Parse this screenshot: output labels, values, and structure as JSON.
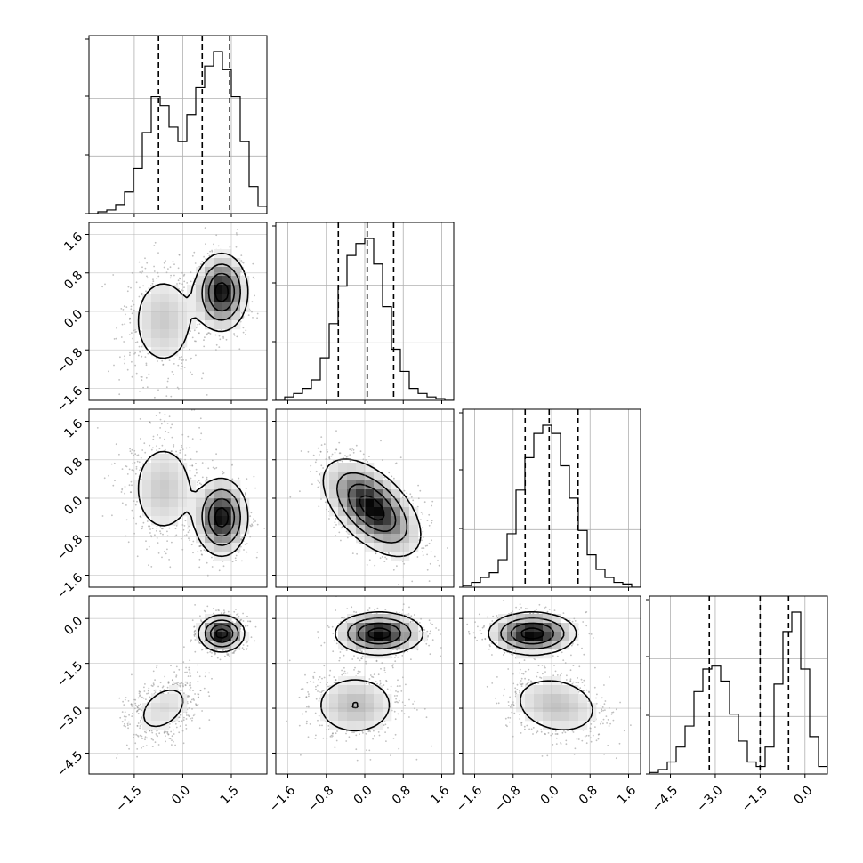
{
  "chart_data": {
    "type": "corner",
    "parameters": 4,
    "grid": true,
    "colors": {
      "density_dark": "#000000",
      "scatter": "#8c8c8c",
      "grid": "#b0b0b0"
    },
    "ticks": [
      {
        "values": [
          -1.5,
          0.0,
          1.5
        ],
        "labels": [
          "−1.5",
          "0.0",
          "1.5"
        ]
      },
      {
        "values": [
          -1.6,
          -0.8,
          0.0,
          0.8,
          1.6
        ],
        "labels": [
          "−1.6",
          "−0.8",
          "0.0",
          "0.8",
          "1.6"
        ]
      },
      {
        "values": [
          -1.6,
          -0.8,
          0.0,
          0.8,
          1.6
        ],
        "labels": [
          "−1.6",
          "−0.8",
          "0.0",
          "0.8",
          "1.6"
        ]
      },
      {
        "values": [
          -4.5,
          -3.0,
          -1.5,
          0.0
        ],
        "labels": [
          "−4.5",
          "−3.0",
          "−1.5",
          "0.0"
        ]
      }
    ],
    "ranges": [
      [
        -2.9,
        2.6
      ],
      [
        -1.85,
        1.85
      ],
      [
        -1.85,
        1.85
      ],
      [
        -5.2,
        0.75
      ]
    ],
    "histograms": [
      {
        "param": 0,
        "edges_range": [
          -2.9,
          2.6
        ],
        "counts": [
          0,
          1,
          2,
          5,
          12,
          25,
          45,
          65,
          60,
          48,
          40,
          55,
          70,
          82,
          90,
          80,
          65,
          40,
          15,
          4
        ],
        "quantiles": [
          -0.75,
          0.6,
          1.45
        ]
      },
      {
        "param": 1,
        "edges_range": [
          -1.85,
          1.85
        ],
        "counts": [
          0,
          2,
          4,
          7,
          12,
          25,
          45,
          67,
          85,
          92,
          95,
          80,
          55,
          30,
          17,
          7,
          4,
          2,
          1,
          0
        ],
        "quantiles": [
          -0.55,
          0.05,
          0.6
        ]
      },
      {
        "param": 2,
        "edges_range": [
          -1.85,
          1.85
        ],
        "counts": [
          1,
          3,
          6,
          9,
          17,
          33,
          60,
          80,
          95,
          100,
          95,
          75,
          55,
          35,
          20,
          11,
          6,
          3,
          2,
          0
        ],
        "quantiles": [
          -0.55,
          -0.05,
          0.55
        ]
      },
      {
        "param": 3,
        "edges_range": [
          -5.2,
          0.75
        ],
        "counts": [
          1,
          3,
          8,
          18,
          32,
          55,
          70,
          72,
          62,
          40,
          22,
          8,
          5,
          18,
          60,
          95,
          108,
          70,
          25,
          5
        ],
        "quantiles": [
          -3.2,
          -1.5,
          -0.55
        ]
      }
    ],
    "pairs": [
      {
        "x": 0,
        "y": 1,
        "clusters": [
          {
            "mx": -0.6,
            "my": -0.2,
            "sx": 0.6,
            "sy": 0.6,
            "rho": 0.0,
            "w": 0.4
          },
          {
            "mx": 1.2,
            "my": 0.4,
            "sx": 0.4,
            "sy": 0.4,
            "rho": 0.0,
            "w": 0.6
          }
        ]
      },
      {
        "x": 0,
        "y": 2,
        "clusters": [
          {
            "mx": -0.6,
            "my": 0.2,
            "sx": 0.6,
            "sy": 0.6,
            "rho": 0.0,
            "w": 0.4
          },
          {
            "mx": 1.2,
            "my": -0.4,
            "sx": 0.4,
            "sy": 0.4,
            "rho": 0.0,
            "w": 0.6
          }
        ]
      },
      {
        "x": 1,
        "y": 2,
        "clusters": [
          {
            "mx": 0.15,
            "my": -0.2,
            "sx": 0.5,
            "sy": 0.5,
            "rho": -0.55,
            "w": 1.0
          }
        ]
      },
      {
        "x": 0,
        "y": 3,
        "clusters": [
          {
            "mx": -0.6,
            "my": -3.0,
            "sx": 0.6,
            "sy": 0.6,
            "rho": 0.4,
            "w": 0.4
          },
          {
            "mx": 1.2,
            "my": -0.5,
            "sx": 0.35,
            "sy": 0.3,
            "rho": 0.0,
            "w": 0.6
          }
        ]
      },
      {
        "x": 1,
        "y": 3,
        "clusters": [
          {
            "mx": -0.2,
            "my": -2.9,
            "sx": 0.5,
            "sy": 0.6,
            "rho": 0.0,
            "w": 0.4
          },
          {
            "mx": 0.3,
            "my": -0.5,
            "sx": 0.45,
            "sy": 0.35,
            "rho": 0.0,
            "w": 0.6
          }
        ]
      },
      {
        "x": 2,
        "y": 3,
        "clusters": [
          {
            "mx": 0.1,
            "my": -2.9,
            "sx": 0.55,
            "sy": 0.6,
            "rho": -0.2,
            "w": 0.4
          },
          {
            "mx": -0.4,
            "my": -0.5,
            "sx": 0.45,
            "sy": 0.35,
            "rho": 0.0,
            "w": 0.6
          }
        ]
      }
    ]
  }
}
